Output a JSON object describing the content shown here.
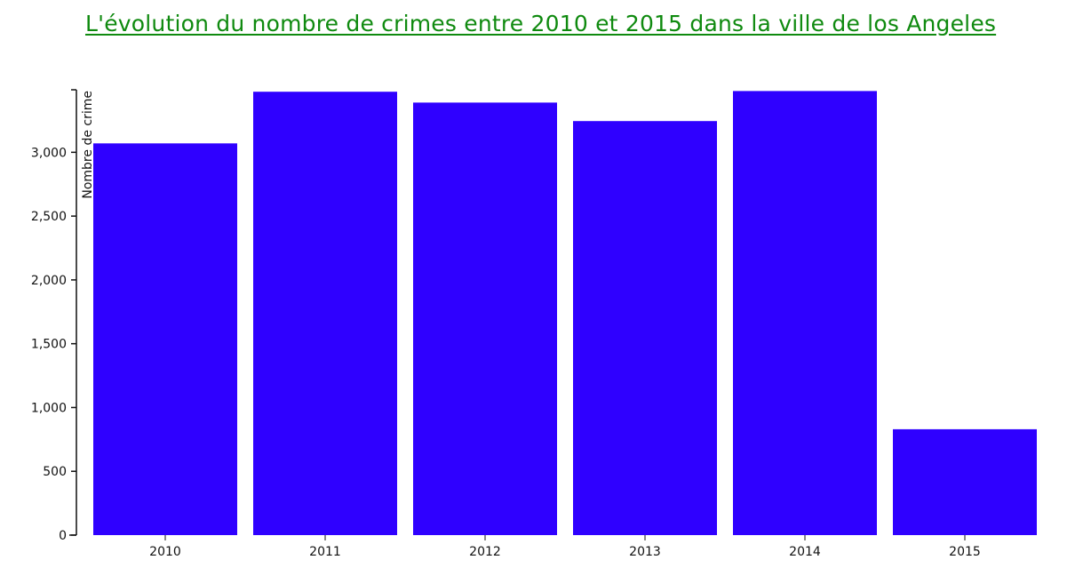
{
  "chart_data": {
    "type": "bar",
    "title": "L'évolution du nombre de crimes entre 2010 et 2015 dans la ville de los Angeles",
    "xlabel": "",
    "ylabel": "Nombre de crime",
    "categories": [
      "2010",
      "2011",
      "2012",
      "2013",
      "2014",
      "2015"
    ],
    "values": [
      3070,
      3475,
      3390,
      3245,
      3480,
      830
    ],
    "ylim": [
      0,
      3490
    ],
    "yticks": [
      0,
      500,
      1000,
      1500,
      2000,
      2500,
      3000
    ],
    "ytick_labels": [
      "0",
      "500",
      "1,000",
      "1,500",
      "2,000",
      "2,500",
      "3,000"
    ],
    "grid": false,
    "colors": {
      "bar": "#2f00ff",
      "title": "#0f8a0f",
      "axis": "#111111"
    }
  }
}
